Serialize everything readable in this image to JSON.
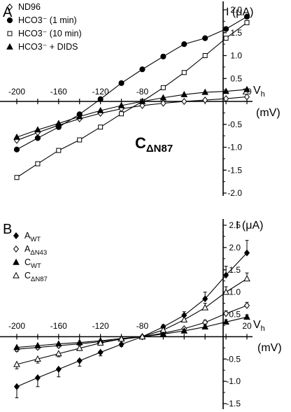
{
  "panels": [
    {
      "panel_letter": "A",
      "annotation": {
        "main": "C",
        "sub": "ΔN87"
      },
      "chart_data": {
        "type": "line",
        "x": [
          -200,
          -180,
          -160,
          -140,
          -120,
          -100,
          -80,
          -60,
          -40,
          -20,
          0,
          20
        ],
        "xlabel": "V_h",
        "xunit": "(mV)",
        "ylabel": "I (μA)",
        "xlim": [
          -200,
          20
        ],
        "ylim": [
          -2.0,
          2.0
        ],
        "xticks": [
          -200,
          -160,
          -120,
          -80,
          20
        ],
        "yticks": [
          -2.0,
          -1.5,
          -1.0,
          -0.5,
          0.5,
          1.0,
          1.5,
          2.0
        ],
        "ytick_labels": [
          "-2.0",
          "-1.5",
          "-1.0",
          "-0.5",
          "0.5",
          "1.0",
          "1.5",
          "2.0"
        ],
        "legend_position": "top-left",
        "series": [
          {
            "label": "ND96",
            "marker": "diamond-open",
            "values": [
              -0.85,
              -0.68,
              -0.52,
              -0.38,
              -0.26,
              -0.16,
              -0.09,
              -0.04,
              0.0,
              0.03,
              0.06,
              0.1
            ]
          },
          {
            "label": "HCO3⁻ (1 min)",
            "marker": "circle-filled",
            "values": [
              -1.05,
              -0.8,
              -0.56,
              -0.28,
              0.05,
              0.4,
              0.7,
              0.98,
              1.25,
              1.38,
              1.58,
              1.85
            ]
          },
          {
            "label": "HCO3⁻ (10 min)",
            "marker": "square-open",
            "values": [
              -1.66,
              -1.36,
              -1.07,
              -0.84,
              -0.56,
              -0.27,
              0.0,
              0.3,
              0.63,
              1.0,
              1.38,
              1.72
            ]
          },
          {
            "label": "HCO3⁻ + DIDS",
            "marker": "triangle-filled",
            "values": [
              -0.78,
              -0.62,
              -0.48,
              -0.33,
              -0.2,
              -0.09,
              0.0,
              0.08,
              0.15,
              0.2,
              0.22,
              0.26
            ]
          }
        ]
      }
    },
    {
      "panel_letter": "B",
      "chart_data": {
        "type": "line",
        "x": [
          -200,
          -180,
          -160,
          -140,
          -120,
          -100,
          -80,
          -60,
          -40,
          -20,
          0,
          20
        ],
        "xlabel": "V_h",
        "xunit": "(mV)",
        "ylabel": "I (μA)",
        "xlim": [
          -200,
          20
        ],
        "ylim": [
          -1.5,
          2.5
        ],
        "xticks": [
          -200,
          -160,
          -120,
          -80,
          20
        ],
        "yticks": [
          -1.5,
          -1.0,
          -0.5,
          0.5,
          1.0,
          1.5,
          2.0,
          2.5
        ],
        "ytick_labels": [
          "-1.5",
          "-1.0",
          "-0.5",
          "0.5",
          "1.0",
          "1.5",
          "2.0",
          "2.5"
        ],
        "legend_position": "top-left",
        "error_bars": true,
        "series": [
          {
            "label": "A",
            "sub": "WT",
            "marker": "diamond-filled",
            "values": [
              -1.12,
              -0.92,
              -0.73,
              -0.54,
              -0.35,
              -0.17,
              0.0,
              0.22,
              0.48,
              0.85,
              1.38,
              1.88
            ],
            "errors": [
              0.25,
              0.2,
              0.17,
              0.12,
              0.08,
              0.05,
              0.02,
              0.05,
              0.08,
              0.15,
              0.2,
              0.28
            ]
          },
          {
            "label": "A",
            "sub": "ΔN43",
            "marker": "diamond-open",
            "values": [
              -0.28,
              -0.24,
              -0.2,
              -0.16,
              -0.11,
              -0.06,
              0.0,
              0.08,
              0.18,
              0.32,
              0.52,
              0.7
            ],
            "errors": [
              0.05,
              0.04,
              0.04,
              0.03,
              0.03,
              0.02,
              0.01,
              0.02,
              0.03,
              0.05,
              0.06,
              0.07
            ]
          },
          {
            "label": "C",
            "sub": "WT",
            "marker": "triangle-filled",
            "values": [
              -0.24,
              -0.2,
              -0.16,
              -0.13,
              -0.09,
              -0.04,
              0.0,
              0.06,
              0.13,
              0.22,
              0.33,
              0.44
            ],
            "errors": [
              0.03,
              0.03,
              0.03,
              0.02,
              0.02,
              0.02,
              0.01,
              0.02,
              0.03,
              0.04,
              0.05,
              0.05
            ]
          },
          {
            "label": "C",
            "sub": "ΔN87",
            "marker": "triangle-open",
            "values": [
              -0.62,
              -0.5,
              -0.38,
              -0.26,
              -0.14,
              -0.05,
              0.0,
              0.15,
              0.38,
              0.65,
              1.0,
              1.3
            ],
            "errors": [
              0.1,
              0.09,
              0.07,
              0.05,
              0.04,
              0.03,
              0.01,
              0.04,
              0.07,
              0.1,
              0.12,
              0.13
            ]
          }
        ]
      }
    }
  ]
}
